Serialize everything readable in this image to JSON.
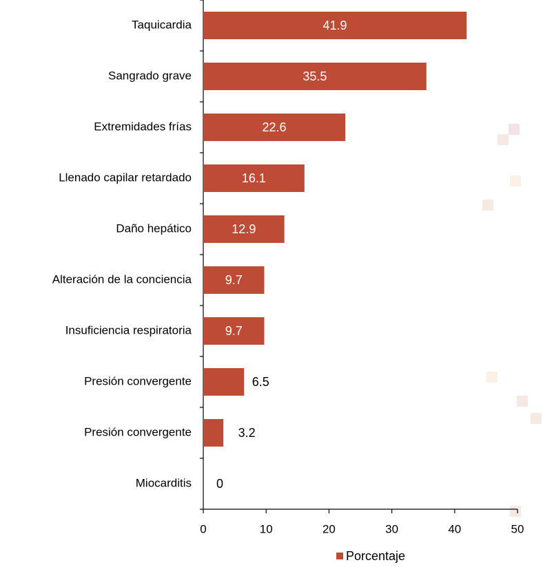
{
  "chart_data": {
    "type": "bar",
    "orientation": "horizontal",
    "categories": [
      "Taquicardia",
      "Sangrado grave",
      "Extremidades frías",
      "Llenado capilar retardado",
      "Daño hepático",
      "Alteración de la conciencia",
      "Insuficiencia respiratoria",
      "Presión convergente",
      "Presión convergente",
      "Miocarditis"
    ],
    "series": [
      {
        "name": "Porcentaje",
        "color": "#be4b35",
        "values": [
          41.9,
          35.5,
          22.6,
          16.1,
          12.9,
          9.7,
          9.7,
          6.5,
          3.2,
          0
        ]
      }
    ],
    "xlim": [
      0,
      50
    ],
    "xticks": [
      0,
      10,
      20,
      30,
      40,
      50
    ],
    "legend": "bottom"
  }
}
